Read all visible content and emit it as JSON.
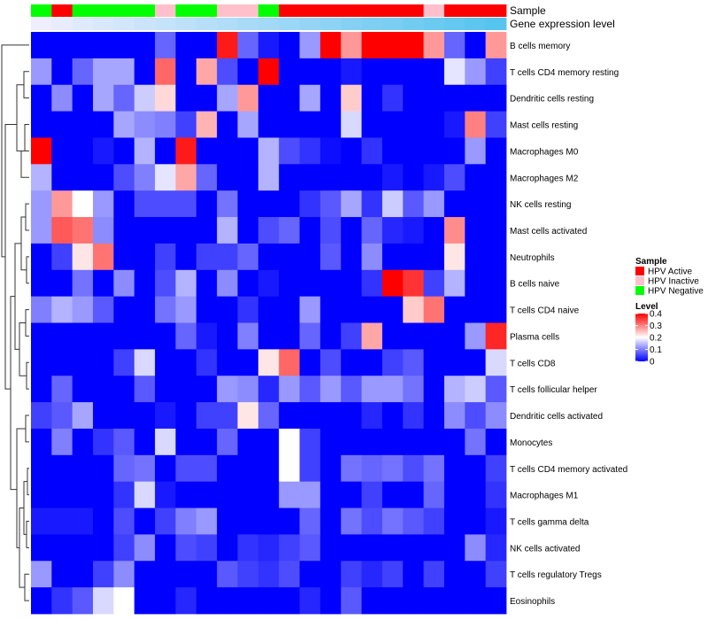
{
  "chart_data": {
    "type": "heatmap",
    "annotation_labels": {
      "sample": "Sample",
      "gene_expression": "Gene expression level"
    },
    "rows": [
      "B cells memory",
      "T cells CD4 memory resting",
      "Dendritic cells resting",
      "Mast cells resting",
      "Macrophages M0",
      "Macrophages M2",
      "NK cells resting",
      "Mast cells activated",
      "Neutrophils",
      "B cells naive",
      "T cells CD4 naive",
      "Plasma cells",
      "T cells CD8",
      "T cells follicular helper",
      "Dendritic cells activated",
      "Monocytes",
      "T cells CD4 memory activated",
      "Macrophages M1",
      "T cells gamma delta",
      "NK cells activated",
      "T cells regulatory  Tregs",
      "Eosinophils"
    ],
    "sample_annotation": [
      "HPV Negative",
      "HPV Active",
      "HPV Negative",
      "HPV Negative",
      "HPV Negative",
      "HPV Negative",
      "HPV Inactive",
      "HPV Negative",
      "HPV Negative",
      "HPV Inactive",
      "HPV Inactive",
      "HPV Negative",
      "HPV Active",
      "HPV Active",
      "HPV Active",
      "HPV Active",
      "HPV Active",
      "HPV Active",
      "HPV Active",
      "HPV Inactive",
      "HPV Active",
      "HPV Active",
      "HPV Active"
    ],
    "expression_annotation": [
      0.02,
      0.04,
      0.06,
      0.08,
      0.1,
      0.12,
      0.14,
      0.16,
      0.18,
      0.2,
      0.22,
      0.24,
      0.26,
      0.28,
      0.3,
      0.32,
      0.34,
      0.36,
      0.38,
      0.4,
      0.42,
      0.44,
      0.46
    ],
    "values": [
      [
        0.0,
        0.0,
        0.0,
        0.0,
        0.0,
        0.0,
        0.08,
        0.0,
        0.0,
        0.38,
        0.08,
        0.02,
        0.0,
        0.12,
        0.4,
        0.28,
        0.4,
        0.4,
        0.4,
        0.28,
        0.08,
        0.0,
        0.28
      ],
      [
        0.12,
        0.0,
        0.08,
        0.13,
        0.13,
        0.0,
        0.32,
        0.0,
        0.27,
        0.06,
        0.0,
        0.4,
        0.0,
        0.0,
        0.0,
        0.02,
        0.0,
        0.0,
        0.0,
        0.0,
        0.18,
        0.12,
        0.05
      ],
      [
        0.0,
        0.11,
        0.0,
        0.13,
        0.08,
        0.16,
        0.23,
        0.0,
        0.0,
        0.13,
        0.28,
        0.0,
        0.0,
        0.13,
        0.0,
        0.24,
        0.0,
        0.04,
        0.0,
        0.0,
        0.0,
        0.0,
        0.0
      ],
      [
        0.0,
        0.0,
        0.0,
        0.0,
        0.13,
        0.11,
        0.1,
        0.05,
        0.26,
        0.0,
        0.13,
        0.0,
        0.0,
        0.0,
        0.0,
        0.17,
        0.0,
        0.0,
        0.0,
        0.0,
        0.02,
        0.3,
        0.05
      ],
      [
        0.4,
        0.0,
        0.0,
        0.02,
        0.0,
        0.14,
        0.0,
        0.38,
        0.0,
        0.0,
        0.0,
        0.14,
        0.06,
        0.04,
        0.01,
        0.0,
        0.04,
        0.0,
        0.0,
        0.0,
        0.0,
        0.12,
        0.0
      ],
      [
        0.14,
        0.0,
        0.0,
        0.0,
        0.06,
        0.1,
        0.18,
        0.27,
        0.08,
        0.0,
        0.0,
        0.14,
        0.0,
        0.0,
        0.0,
        0.0,
        0.0,
        0.02,
        0.0,
        0.02,
        0.06,
        0.0,
        0.0
      ],
      [
        0.12,
        0.28,
        0.2,
        0.12,
        0.0,
        0.06,
        0.06,
        0.06,
        0.0,
        0.09,
        0.0,
        0.0,
        0.0,
        0.04,
        0.07,
        0.13,
        0.04,
        0.16,
        0.07,
        0.12,
        0.0,
        0.0,
        0.0
      ],
      [
        0.12,
        0.33,
        0.31,
        0.11,
        0.0,
        0.0,
        0.0,
        0.0,
        0.0,
        0.14,
        0.0,
        0.06,
        0.08,
        0.0,
        0.06,
        0.0,
        0.08,
        0.03,
        0.02,
        0.0,
        0.29,
        0.0,
        0.0
      ],
      [
        0.0,
        0.05,
        0.22,
        0.31,
        0.0,
        0.0,
        0.05,
        0.0,
        0.05,
        0.05,
        0.08,
        0.0,
        0.0,
        0.0,
        0.07,
        0.0,
        0.11,
        0.0,
        0.0,
        0.0,
        0.22,
        0.0,
        0.0
      ],
      [
        0.0,
        0.0,
        0.09,
        0.0,
        0.11,
        0.0,
        0.06,
        0.14,
        0.0,
        0.11,
        0.0,
        0.02,
        0.0,
        0.0,
        0.0,
        0.0,
        0.04,
        0.4,
        0.36,
        0.05,
        0.14,
        0.0,
        0.0
      ],
      [
        0.1,
        0.14,
        0.12,
        0.07,
        0.0,
        0.0,
        0.09,
        0.12,
        0.0,
        0.0,
        0.04,
        0.0,
        0.0,
        0.12,
        0.0,
        0.0,
        0.0,
        0.0,
        0.24,
        0.31,
        0.0,
        0.0,
        0.0
      ],
      [
        0.0,
        0.0,
        0.0,
        0.0,
        0.0,
        0.0,
        0.0,
        0.08,
        0.02,
        0.0,
        0.1,
        0.0,
        0.0,
        0.08,
        0.0,
        0.05,
        0.27,
        0.0,
        0.0,
        0.0,
        0.0,
        0.12,
        0.37
      ],
      [
        0.0,
        0.0,
        0.0,
        0.0,
        0.05,
        0.17,
        0.0,
        0.0,
        0.04,
        0.0,
        0.0,
        0.22,
        0.32,
        0.0,
        0.06,
        0.0,
        0.0,
        0.05,
        0.07,
        0.0,
        0.0,
        0.0,
        0.17
      ],
      [
        0.0,
        0.08,
        0.0,
        0.0,
        0.0,
        0.07,
        0.0,
        0.0,
        0.0,
        0.12,
        0.11,
        0.03,
        0.12,
        0.07,
        0.12,
        0.07,
        0.12,
        0.12,
        0.09,
        0.0,
        0.14,
        0.16,
        0.07
      ],
      [
        0.05,
        0.07,
        0.13,
        0.0,
        0.0,
        0.0,
        0.02,
        0.0,
        0.05,
        0.05,
        0.22,
        0.08,
        0.0,
        0.0,
        0.0,
        0.0,
        0.03,
        0.0,
        0.04,
        0.0,
        0.11,
        0.06,
        0.11
      ],
      [
        0.0,
        0.1,
        0.0,
        0.04,
        0.07,
        0.0,
        0.17,
        0.0,
        0.0,
        0.08,
        0.0,
        0.0,
        0.2,
        0.05,
        0.0,
        0.0,
        0.0,
        0.0,
        0.0,
        0.0,
        0.0,
        0.09,
        0.0
      ],
      [
        0.0,
        0.0,
        0.0,
        0.0,
        0.08,
        0.09,
        0.0,
        0.06,
        0.06,
        0.0,
        0.0,
        0.0,
        0.2,
        0.05,
        0.0,
        0.09,
        0.08,
        0.09,
        0.06,
        0.09,
        0.0,
        0.0,
        0.05
      ],
      [
        0.0,
        0.0,
        0.0,
        0.0,
        0.04,
        0.17,
        0.02,
        0.0,
        0.0,
        0.0,
        0.0,
        0.0,
        0.12,
        0.12,
        0.0,
        0.0,
        0.05,
        0.0,
        0.0,
        0.08,
        0.0,
        0.0,
        0.04
      ],
      [
        0.02,
        0.02,
        0.02,
        0.0,
        0.06,
        0.0,
        0.05,
        0.1,
        0.12,
        0.0,
        0.0,
        0.0,
        0.0,
        0.08,
        0.0,
        0.09,
        0.06,
        0.09,
        0.07,
        0.05,
        0.0,
        0.0,
        0.02
      ],
      [
        0.0,
        0.0,
        0.0,
        0.0,
        0.05,
        0.11,
        0.0,
        0.06,
        0.05,
        0.0,
        0.04,
        0.03,
        0.05,
        0.07,
        0.0,
        0.0,
        0.0,
        0.0,
        0.0,
        0.0,
        0.0,
        0.11,
        0.03
      ],
      [
        0.12,
        0.0,
        0.0,
        0.05,
        0.11,
        0.0,
        0.0,
        0.0,
        0.0,
        0.07,
        0.05,
        0.04,
        0.06,
        0.0,
        0.0,
        0.05,
        0.03,
        0.05,
        0.0,
        0.05,
        0.0,
        0.0,
        0.05
      ],
      [
        0.0,
        0.04,
        0.07,
        0.17,
        0.2,
        0.0,
        0.0,
        0.03,
        0.0,
        0.0,
        0.0,
        0.0,
        0.0,
        0.03,
        0.0,
        0.07,
        0.0,
        0.0,
        0.0,
        0.0,
        0.0,
        0.0,
        0.0
      ]
    ],
    "legend": {
      "sample_title": "Sample",
      "sample_items": [
        {
          "label": "HPV Active",
          "color": "#FF0000"
        },
        {
          "label": "HPV Inactive",
          "color": "#FFC0CB"
        },
        {
          "label": "HPV Negative",
          "color": "#00FF00"
        }
      ],
      "level_title": "Level",
      "level_ticks": [
        {
          "value": 0.4,
          "label": "0.4"
        },
        {
          "value": 0.3,
          "label": "0.3"
        },
        {
          "value": 0.2,
          "label": "0.2"
        },
        {
          "value": 0.1,
          "label": "0.1"
        },
        {
          "value": 0,
          "label": "0"
        }
      ],
      "level_range": [
        0,
        0.4
      ],
      "placement": "right"
    },
    "colors": {
      "low": "#0000FF",
      "mid": "#FFFFFF",
      "high": "#FF0000",
      "expression_low": "#EEEEFF",
      "expression_high": "#56C4EE"
    }
  }
}
